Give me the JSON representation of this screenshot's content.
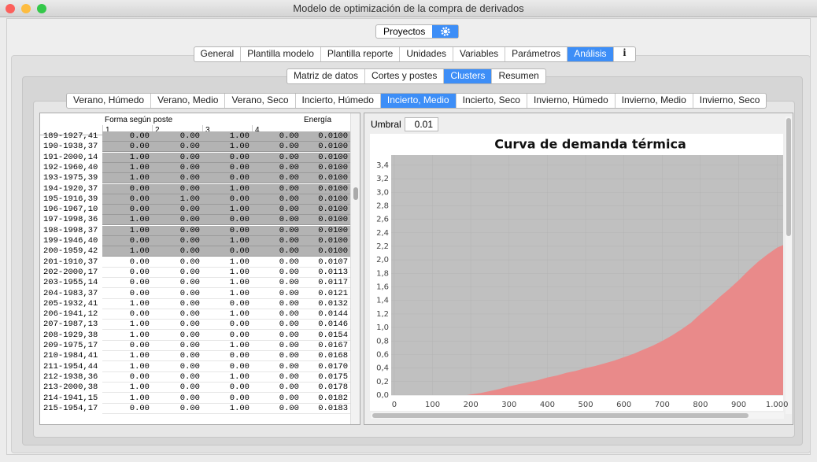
{
  "window": {
    "title": "Modelo de optimización de la compra de derivados"
  },
  "toolbar": {
    "button": "Proyectos"
  },
  "main_tabs": {
    "items": [
      "General",
      "Plantilla modelo",
      "Plantilla reporte",
      "Unidades",
      "Variables",
      "Parámetros",
      "Análisis",
      "i"
    ],
    "selected": 6
  },
  "sub_tabs": {
    "items": [
      "Matriz de datos",
      "Cortes y postes",
      "Clusters",
      "Resumen"
    ],
    "selected": 2
  },
  "cluster_tabs": {
    "items": [
      "Verano, Húmedo",
      "Verano, Medio",
      "Verano, Seco",
      "Incierto, Húmedo",
      "Incierto, Medio",
      "Incierto, Seco",
      "Invierno, Húmedo",
      "Invierno, Medio",
      "Invierno, Seco"
    ],
    "selected": 4
  },
  "table": {
    "group_header": "Forma según poste",
    "energy_header": "Energía",
    "columns": [
      "1",
      "2",
      "3",
      "4"
    ],
    "rows": [
      {
        "label": "189-1927,41",
        "cells": [
          "0.00",
          "0.00",
          "1.00",
          "0.00",
          "0.0100"
        ],
        "selected": true
      },
      {
        "label": "190-1938,37",
        "cells": [
          "0.00",
          "0.00",
          "1.00",
          "0.00",
          "0.0100"
        ],
        "selected": true
      },
      {
        "label": "191-2000,14",
        "cells": [
          "1.00",
          "0.00",
          "0.00",
          "0.00",
          "0.0100"
        ],
        "selected": true
      },
      {
        "label": "192-1960,40",
        "cells": [
          "1.00",
          "0.00",
          "0.00",
          "0.00",
          "0.0100"
        ],
        "selected": true
      },
      {
        "label": "193-1975,39",
        "cells": [
          "1.00",
          "0.00",
          "0.00",
          "0.00",
          "0.0100"
        ],
        "selected": true
      },
      {
        "label": "194-1920,37",
        "cells": [
          "0.00",
          "0.00",
          "1.00",
          "0.00",
          "0.0100"
        ],
        "selected": true
      },
      {
        "label": "195-1916,39",
        "cells": [
          "0.00",
          "1.00",
          "0.00",
          "0.00",
          "0.0100"
        ],
        "selected": true
      },
      {
        "label": "196-1967,10",
        "cells": [
          "0.00",
          "0.00",
          "1.00",
          "0.00",
          "0.0100"
        ],
        "selected": true
      },
      {
        "label": "197-1998,36",
        "cells": [
          "1.00",
          "0.00",
          "0.00",
          "0.00",
          "0.0100"
        ],
        "selected": true
      },
      {
        "label": "198-1998,37",
        "cells": [
          "1.00",
          "0.00",
          "0.00",
          "0.00",
          "0.0100"
        ],
        "selected": true
      },
      {
        "label": "199-1946,40",
        "cells": [
          "0.00",
          "0.00",
          "1.00",
          "0.00",
          "0.0100"
        ],
        "selected": true
      },
      {
        "label": "200-1959,42",
        "cells": [
          "1.00",
          "0.00",
          "0.00",
          "0.00",
          "0.0100"
        ],
        "selected": true
      },
      {
        "label": "201-1910,37",
        "cells": [
          "0.00",
          "0.00",
          "1.00",
          "0.00",
          "0.0107"
        ],
        "selected": false
      },
      {
        "label": "202-2000,17",
        "cells": [
          "0.00",
          "0.00",
          "1.00",
          "0.00",
          "0.0113"
        ],
        "selected": false
      },
      {
        "label": "203-1955,14",
        "cells": [
          "0.00",
          "0.00",
          "1.00",
          "0.00",
          "0.0117"
        ],
        "selected": false
      },
      {
        "label": "204-1983,37",
        "cells": [
          "0.00",
          "0.00",
          "1.00",
          "0.00",
          "0.0121"
        ],
        "selected": false
      },
      {
        "label": "205-1932,41",
        "cells": [
          "1.00",
          "0.00",
          "0.00",
          "0.00",
          "0.0132"
        ],
        "selected": false
      },
      {
        "label": "206-1941,12",
        "cells": [
          "0.00",
          "0.00",
          "1.00",
          "0.00",
          "0.0144"
        ],
        "selected": false
      },
      {
        "label": "207-1987,13",
        "cells": [
          "1.00",
          "0.00",
          "0.00",
          "0.00",
          "0.0146"
        ],
        "selected": false
      },
      {
        "label": "208-1929,38",
        "cells": [
          "1.00",
          "0.00",
          "0.00",
          "0.00",
          "0.0154"
        ],
        "selected": false
      },
      {
        "label": "209-1975,17",
        "cells": [
          "0.00",
          "0.00",
          "1.00",
          "0.00",
          "0.0167"
        ],
        "selected": false
      },
      {
        "label": "210-1984,41",
        "cells": [
          "1.00",
          "0.00",
          "0.00",
          "0.00",
          "0.0168"
        ],
        "selected": false
      },
      {
        "label": "211-1954,44",
        "cells": [
          "1.00",
          "0.00",
          "0.00",
          "0.00",
          "0.0170"
        ],
        "selected": false
      },
      {
        "label": "212-1938,36",
        "cells": [
          "0.00",
          "0.00",
          "1.00",
          "0.00",
          "0.0175"
        ],
        "selected": false
      },
      {
        "label": "213-2000,38",
        "cells": [
          "1.00",
          "0.00",
          "0.00",
          "0.00",
          "0.0178"
        ],
        "selected": false
      },
      {
        "label": "214-1941,15",
        "cells": [
          "1.00",
          "0.00",
          "0.00",
          "0.00",
          "0.0182"
        ],
        "selected": false
      },
      {
        "label": "215-1954,17",
        "cells": [
          "0.00",
          "0.00",
          "1.00",
          "0.00",
          "0.0183"
        ],
        "selected": false
      }
    ]
  },
  "threshold": {
    "label": "Umbral",
    "value": "0.01"
  },
  "chart_data": {
    "type": "area",
    "title": "Curva de demanda térmica",
    "color": "#e98a8a",
    "background": "#c0c0c0",
    "x": [
      0,
      190,
      200,
      225,
      250,
      275,
      300,
      325,
      350,
      375,
      400,
      425,
      450,
      475,
      500,
      525,
      550,
      575,
      600,
      625,
      650,
      675,
      700,
      725,
      750,
      775,
      800,
      825,
      850,
      875,
      900,
      925,
      950,
      975,
      1000,
      1016
    ],
    "values": [
      0,
      0,
      0.01,
      0.03,
      0.06,
      0.09,
      0.13,
      0.16,
      0.19,
      0.22,
      0.26,
      0.29,
      0.33,
      0.36,
      0.4,
      0.43,
      0.47,
      0.51,
      0.56,
      0.61,
      0.67,
      0.73,
      0.8,
      0.88,
      0.97,
      1.07,
      1.2,
      1.32,
      1.45,
      1.57,
      1.7,
      1.84,
      1.97,
      2.08,
      2.18,
      2.22
    ],
    "xlim": [
      -8,
      1016
    ],
    "ylim": [
      0,
      3.55
    ],
    "xticks": [
      0,
      100,
      200,
      300,
      400,
      500,
      600,
      700,
      800,
      900,
      {
        "value": 1000,
        "label": "1.000"
      }
    ],
    "yticks": [
      {
        "value": 0,
        "label": "0,0"
      },
      {
        "value": 0.2,
        "label": "0,2"
      },
      {
        "value": 0.4,
        "label": "0,4"
      },
      {
        "value": 0.6,
        "label": "0,6"
      },
      {
        "value": 0.8,
        "label": "0,8"
      },
      {
        "value": 1,
        "label": "1,0"
      },
      {
        "value": 1.2,
        "label": "1,2"
      },
      {
        "value": 1.4,
        "label": "1,4"
      },
      {
        "value": 1.6,
        "label": "1,6"
      },
      {
        "value": 1.8,
        "label": "1,8"
      },
      {
        "value": 2,
        "label": "2,0"
      },
      {
        "value": 2.2,
        "label": "2,2"
      },
      {
        "value": 2.4,
        "label": "2,4"
      },
      {
        "value": 2.6,
        "label": "2,6"
      },
      {
        "value": 2.8,
        "label": "2,8"
      },
      {
        "value": 3,
        "label": "3,0"
      },
      {
        "value": 3.2,
        "label": "3,2"
      },
      {
        "value": 3.4,
        "label": "3,4"
      }
    ],
    "grid": true
  }
}
